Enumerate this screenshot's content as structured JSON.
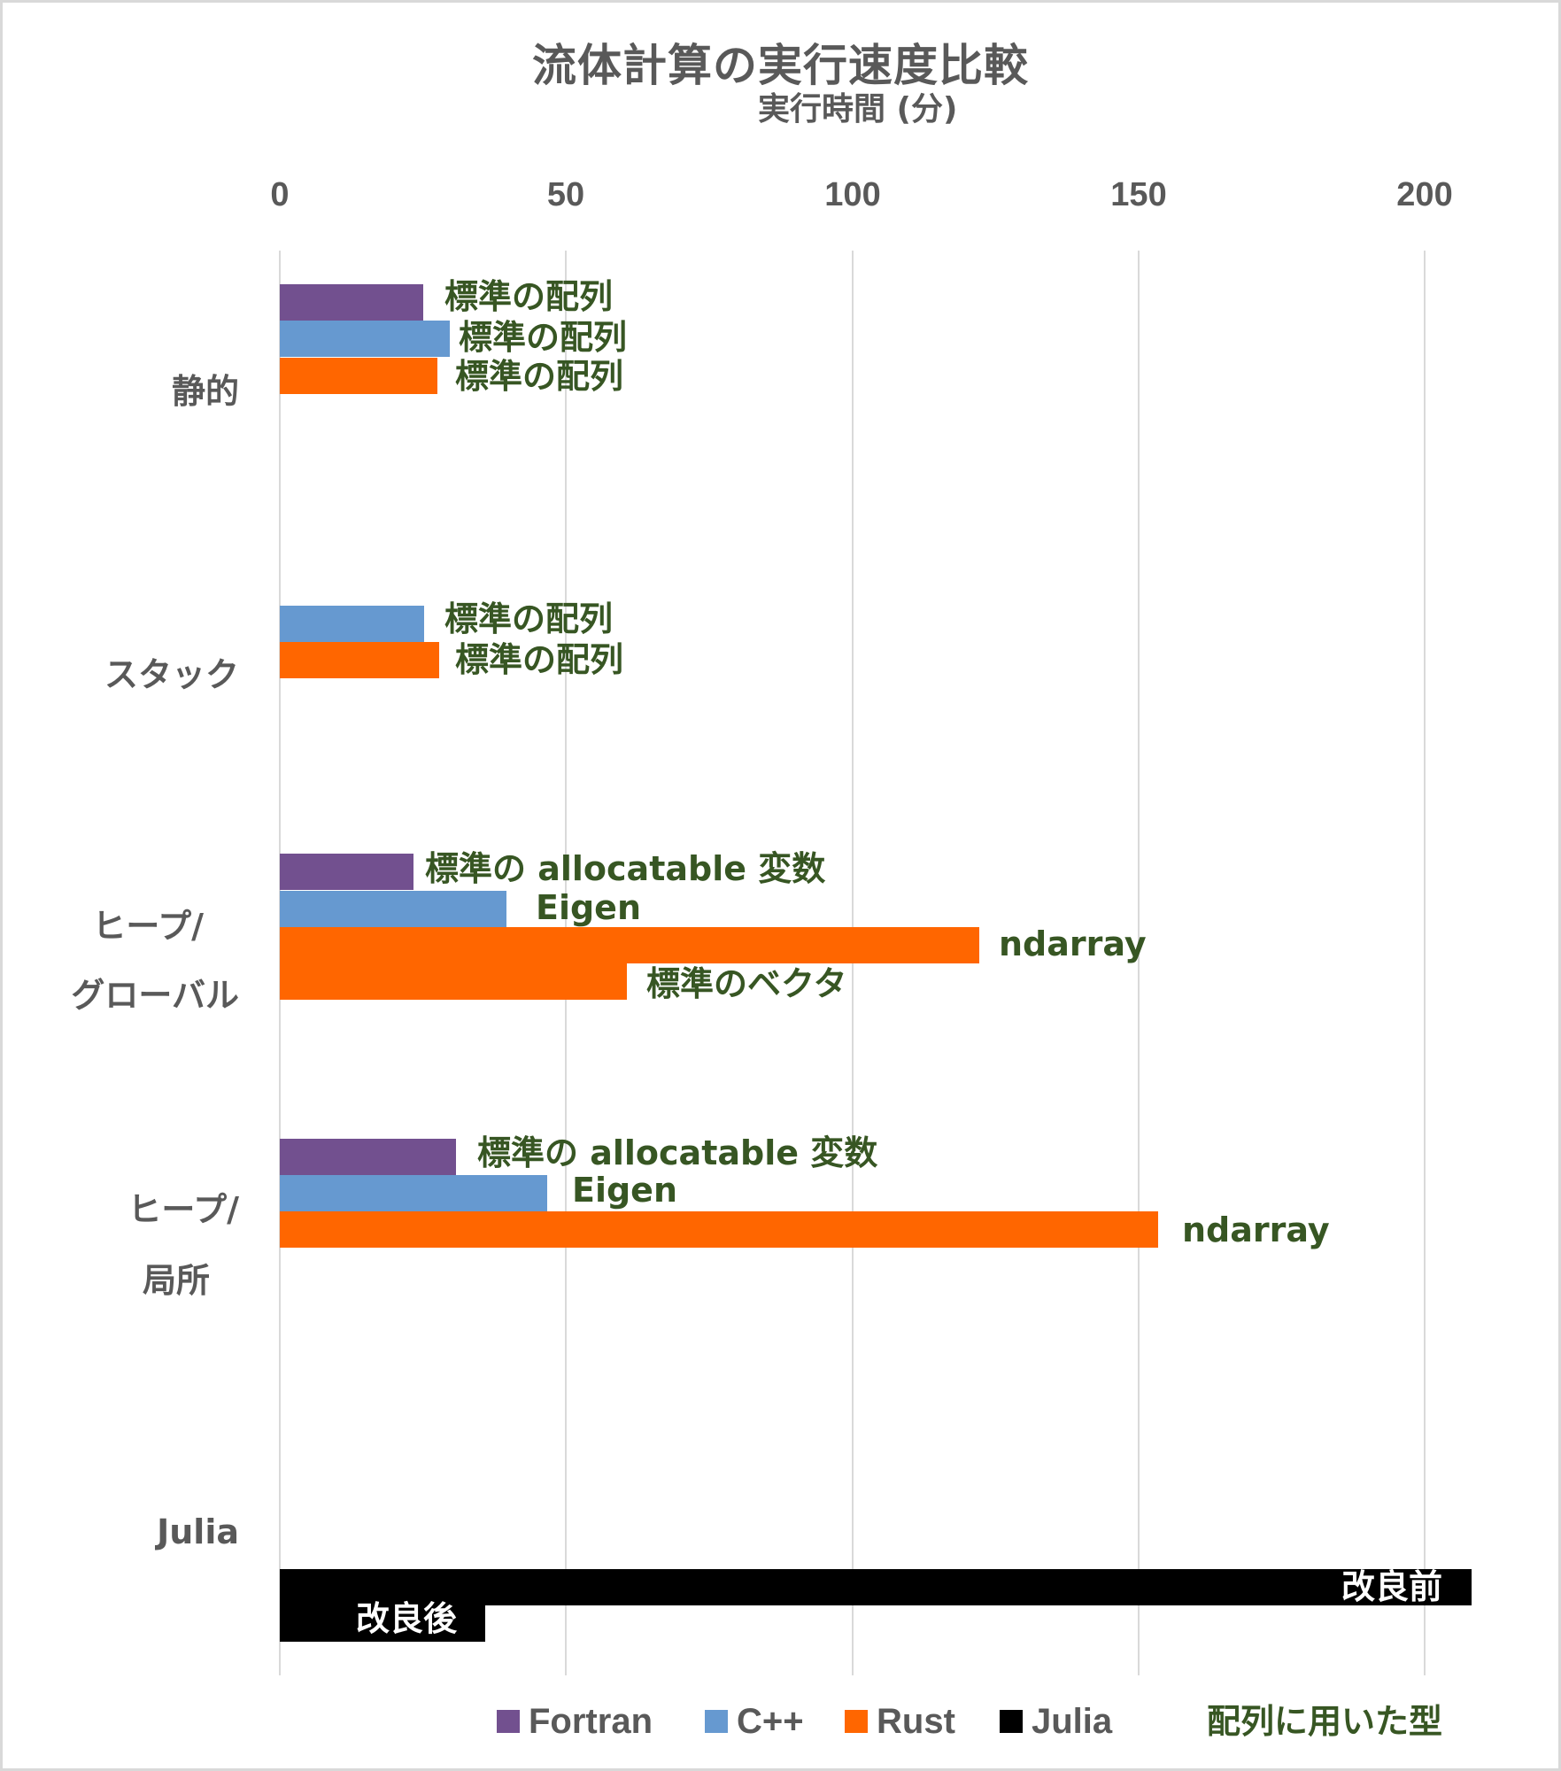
{
  "title": "流体計算の実行速度比較",
  "axis": {
    "xlabel": "実行時間 (分)",
    "ticks": [
      "0",
      "50",
      "100",
      "150",
      "200"
    ]
  },
  "colors": {
    "fortran": "#72508f",
    "cpp": "#6699d0",
    "rust": "#ff6600",
    "julia": "#000000",
    "label_green": "#375623",
    "axis_text": "#595959",
    "grid": "#d9d9d9"
  },
  "categories": {
    "static": "静的",
    "stack": "スタック",
    "heap_global_1": "ヒープ/",
    "heap_global_2": "グローバル",
    "heap_local_1": "ヒープ/",
    "heap_local_2": "局所",
    "julia": "Julia"
  },
  "bars": [
    {
      "group": "静的",
      "series": "Fortran",
      "value": 25.0,
      "label": "標準の配列"
    },
    {
      "group": "静的",
      "series": "C++",
      "value": 29.7,
      "label": "標準の配列"
    },
    {
      "group": "静的",
      "series": "Rust",
      "value": 27.5,
      "label": "標準の配列"
    },
    {
      "group": "スタック",
      "series": "C++",
      "value": 25.2,
      "label": "標準の配列"
    },
    {
      "group": "スタック",
      "series": "Rust",
      "value": 27.8,
      "label": "標準の配列"
    },
    {
      "group": "ヒープ/グローバル",
      "series": "Fortran",
      "value": 23.3,
      "label": "標準の allocatable 変数"
    },
    {
      "group": "ヒープ/グローバル",
      "series": "C++",
      "value": 39.6,
      "label": "Eigen"
    },
    {
      "group": "ヒープ/グローバル",
      "series": "Rust",
      "value": 122.2,
      "label": "ndarray"
    },
    {
      "group": "ヒープ/グローバル",
      "series": "Rust",
      "value": 60.6,
      "label": "標準のベクタ"
    },
    {
      "group": "ヒープ/局所",
      "series": "Fortran",
      "value": 30.8,
      "label": "標準の allocatable 変数"
    },
    {
      "group": "ヒープ/局所",
      "series": "C++",
      "value": 46.7,
      "label": "Eigen"
    },
    {
      "group": "ヒープ/局所",
      "series": "Rust",
      "value": 153.4,
      "label": "ndarray"
    },
    {
      "group": "Julia",
      "series": "Julia",
      "value": 208.2,
      "label": "改良前"
    },
    {
      "group": "Julia",
      "series": "Julia",
      "value": 35.9,
      "label": "改良後"
    }
  ],
  "legend": {
    "items": [
      {
        "label": "Fortran",
        "color": "#72508f"
      },
      {
        "label": "C++",
        "color": "#6699d0"
      },
      {
        "label": "Rust",
        "color": "#ff6600"
      },
      {
        "label": "Julia",
        "color": "#000000"
      }
    ],
    "note": "配列に用いた型"
  },
  "chart_data": {
    "type": "bar",
    "orientation": "horizontal",
    "title": "流体計算の実行速度比較",
    "xlabel": "実行時間 (分)",
    "ylabel": "",
    "xlim": [
      0,
      200
    ],
    "xticks": [
      0,
      50,
      100,
      150,
      200
    ],
    "grid": true,
    "legend_position": "bottom",
    "categories": [
      "静的",
      "スタック",
      "ヒープ/グローバル",
      "ヒープ/局所",
      "Julia"
    ],
    "series": [
      {
        "name": "Fortran",
        "color": "#72508f",
        "values": [
          25.0,
          null,
          23.3,
          30.8,
          null
        ],
        "labels": [
          "標準の配列",
          null,
          "標準の allocatable 変数",
          "標準の allocatable 変数",
          null
        ]
      },
      {
        "name": "C++",
        "color": "#6699d0",
        "values": [
          29.7,
          25.2,
          39.6,
          46.7,
          null
        ],
        "labels": [
          "標準の配列",
          "標準の配列",
          "Eigen",
          "Eigen",
          null
        ]
      },
      {
        "name": "Rust",
        "color": "#ff6600",
        "values": [
          27.5,
          27.8,
          122.2,
          153.4,
          null
        ],
        "labels": [
          "標準の配列",
          "標準の配列",
          "ndarray",
          "ndarray",
          null
        ]
      },
      {
        "name": "Rust (標準のベクタ)",
        "color": "#ff6600",
        "values": [
          null,
          null,
          60.6,
          null,
          null
        ],
        "labels": [
          null,
          null,
          "標準のベクタ",
          null,
          null
        ]
      },
      {
        "name": "Julia 改良前",
        "color": "#000000",
        "values": [
          null,
          null,
          null,
          null,
          208.2
        ],
        "labels": [
          null,
          null,
          null,
          null,
          "改良前"
        ]
      },
      {
        "name": "Julia 改良後",
        "color": "#000000",
        "values": [
          null,
          null,
          null,
          null,
          35.9
        ],
        "labels": [
          null,
          null,
          null,
          null,
          "改良後"
        ]
      }
    ],
    "legend": [
      "Fortran",
      "C++",
      "Rust",
      "Julia"
    ],
    "annotation": "配列に用いた型"
  }
}
